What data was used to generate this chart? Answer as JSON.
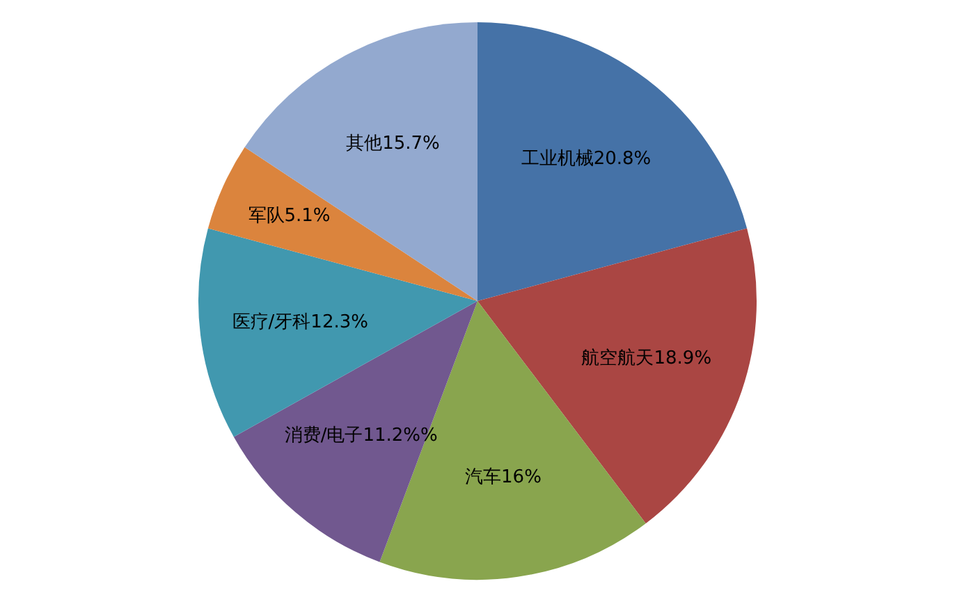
{
  "chart_data": {
    "type": "pie",
    "categories": [
      "工业机械",
      "航空航天",
      "汽车",
      "消费/电子",
      "医疗/牙科",
      "军队",
      "其他"
    ],
    "values": [
      20.8,
      18.9,
      16,
      11.2,
      12.3,
      5.1,
      15.7
    ],
    "colors": [
      "#4572a7",
      "#aa4643",
      "#89a54e",
      "#71588f",
      "#4198af",
      "#db843d",
      "#93a9cf"
    ],
    "value_labels": [
      "20.8%",
      "18.9%",
      "16%",
      "11.2%%",
      "12.3%",
      "5.1%",
      "15.7%"
    ]
  }
}
